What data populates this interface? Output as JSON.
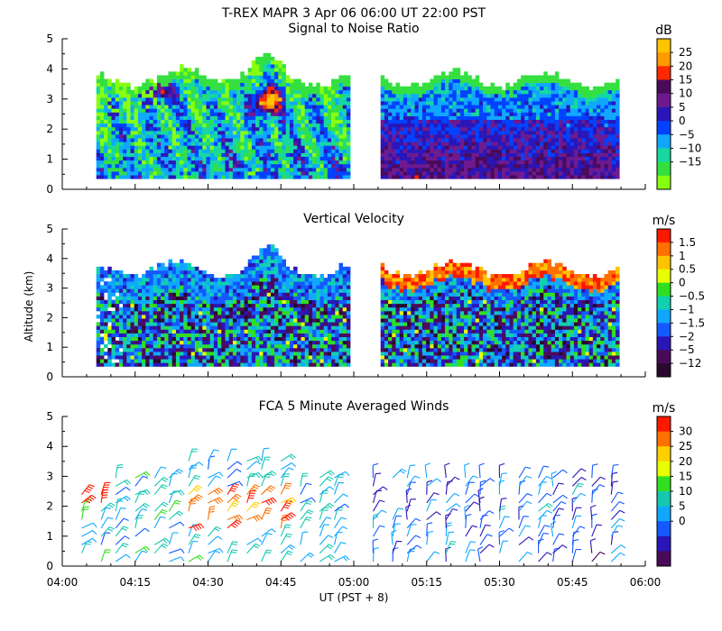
{
  "figure": {
    "title": "T-REX   MAPR   3 Apr 06   06:00 UT   22:00   PST",
    "xlabel": "UT  (PST + 8)",
    "ylabel": "Altitude (km)"
  },
  "chart_data": [
    {
      "type": "heatmap",
      "title": "Signal to Noise Ratio",
      "units": "dB",
      "ylim": [
        0,
        5
      ],
      "yticks": [
        "0",
        "1",
        "2",
        "3",
        "4",
        "5"
      ],
      "xlim_minutes": [
        0,
        120
      ],
      "xticks": [
        "04:00",
        "04:15",
        "04:30",
        "04:45",
        "05:00",
        "05:15",
        "05:30",
        "05:45",
        "06:00"
      ],
      "data_gap_minutes": [
        59,
        65
      ],
      "data_start_minute": 7,
      "data_end_minute": 114,
      "colorbar_labels": [
        "25",
        "20",
        "15",
        "10",
        "5",
        "0",
        "−5",
        "−10",
        "−15"
      ],
      "colorbar_colors": [
        "#ffc400",
        "#ff9a00",
        "#ff2800",
        "#4a0a5c",
        "#6e1a8e",
        "#2a16b8",
        "#0042ff",
        "#10a8ff",
        "#16d8a0",
        "#34e040",
        "#88ff10"
      ],
      "description_values": {
        "peak_snr_dB": 15,
        "peak_time": "04:43",
        "peak_altitude_km": 2.9
      }
    },
    {
      "type": "heatmap",
      "title": "Vertical Velocity",
      "units": "m/s",
      "ylim": [
        0,
        5
      ],
      "yticks": [
        "0",
        "1",
        "2",
        "3",
        "4",
        "5"
      ],
      "xlim_minutes": [
        0,
        120
      ],
      "xticks": [
        "04:00",
        "04:15",
        "04:30",
        "04:45",
        "05:00",
        "05:15",
        "05:30",
        "05:45",
        "06:00"
      ],
      "colorbar_labels": [
        "1.5",
        "1",
        "0.5",
        "0",
        "−0.5",
        "−1",
        "−1.5",
        "−2",
        "−5",
        "−12"
      ],
      "colorbar_colors": [
        "#ff1800",
        "#ff7000",
        "#ffc400",
        "#e8ff00",
        "#30e020",
        "#10d0b0",
        "#10a8ff",
        "#1458ff",
        "#2a16b8",
        "#4a0a5c",
        "#2a0830"
      ]
    },
    {
      "type": "scatter",
      "title": "FCA 5 Minute Averaged Winds",
      "units": "m/s",
      "ylim": [
        0,
        5
      ],
      "yticks": [
        "0",
        "1",
        "2",
        "3",
        "4",
        "5"
      ],
      "xlim_minutes": [
        0,
        120
      ],
      "xticks": [
        "04:00",
        "04:15",
        "04:30",
        "04:45",
        "05:00",
        "05:15",
        "05:30",
        "05:45",
        "06:00"
      ],
      "colorbar_labels": [
        "30",
        "25",
        "20",
        "15",
        "10",
        "5",
        "0"
      ],
      "colorbar_colors": [
        "#ff1800",
        "#ff7000",
        "#ffd000",
        "#e8ff00",
        "#30e020",
        "#16c8b0",
        "#10a8ff",
        "#1458ff",
        "#2a16b8",
        "#4a0a5c"
      ],
      "barb_columns_minutes": [
        4,
        8,
        11,
        15,
        19,
        22,
        26,
        30,
        34,
        38,
        41,
        45,
        49,
        53,
        56,
        64,
        68,
        71,
        75,
        79,
        83,
        86,
        90,
        94,
        98,
        101,
        105,
        109,
        113
      ],
      "strong_winds": {
        "time_range": "04:30-04:45",
        "altitude_km": [
          1,
          2.5
        ],
        "max_speed_ms": 30
      }
    }
  ]
}
